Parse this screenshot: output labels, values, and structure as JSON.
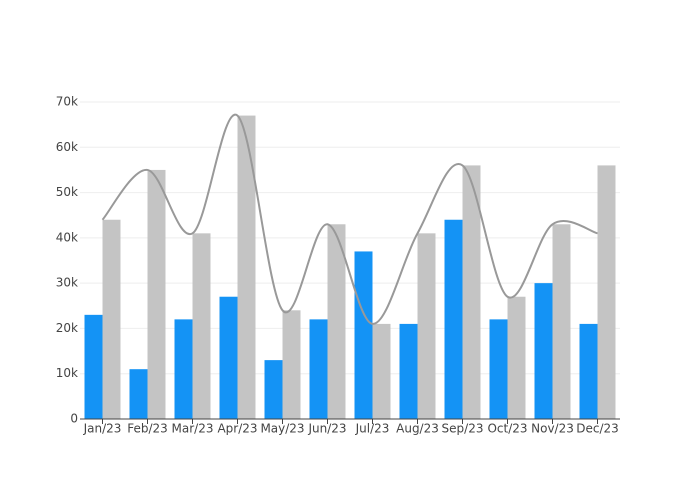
{
  "chart_data": {
    "type": "bar",
    "categories": [
      "Jan/23",
      "Feb/23",
      "Mar/23",
      "Apr/23",
      "May/23",
      "Jun/23",
      "Jul/23",
      "Aug/23",
      "Sep/23",
      "Oct/23",
      "Nov/23",
      "Dec/23"
    ],
    "series": [
      {
        "type": "bar",
        "color": "#1493f5",
        "values": [
          23000,
          11000,
          22000,
          27000,
          13000,
          22000,
          37000,
          21000,
          44000,
          22000,
          30000,
          21000
        ]
      },
      {
        "type": "bar",
        "color": "#c4c4c4",
        "values": [
          44000,
          55000,
          41000,
          67000,
          24000,
          43000,
          21000,
          41000,
          56000,
          27000,
          43000,
          56000
        ]
      },
      {
        "type": "line",
        "color": "#999999",
        "values": [
          44000,
          55000,
          41000,
          67000,
          24000,
          43000,
          21000,
          41000,
          56000,
          27000,
          43000,
          41000
        ]
      }
    ],
    "ylim": [
      0,
      70000
    ],
    "yticks": [
      0,
      {
        "value": 10000,
        "label": "10k"
      },
      {
        "value": 20000,
        "label": "20k"
      },
      {
        "value": 30000,
        "label": "30k"
      },
      {
        "value": 40000,
        "label": "40k"
      },
      {
        "value": 50000,
        "label": "50k"
      },
      {
        "value": 60000,
        "label": "60k"
      },
      {
        "value": 70000,
        "label": "70k"
      }
    ],
    "grid": true
  }
}
